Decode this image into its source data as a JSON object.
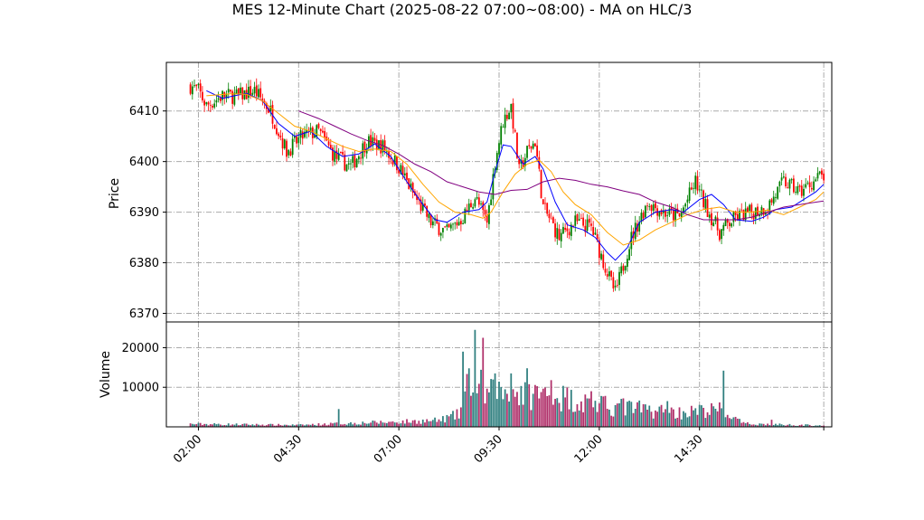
{
  "chart_data": {
    "type": "candlestick",
    "title": "MES 12-Minute Chart (2025-08-22 07:00~08:00) - MA on HLC/3",
    "price_panel": {
      "ylabel": "Price",
      "ylim": [
        6368.3,
        6419.6
      ],
      "yticks": [
        6370,
        6380,
        6390,
        6400,
        6410
      ],
      "close_path": [
        [
          "01:48",
          6415
        ],
        [
          "02:00",
          6414
        ],
        [
          "02:12",
          6411
        ],
        [
          "02:36",
          6413
        ],
        [
          "03:00",
          6413
        ],
        [
          "03:24",
          6414
        ],
        [
          "03:48",
          6410
        ],
        [
          "04:12",
          6402
        ],
        [
          "04:36",
          6405
        ],
        [
          "05:00",
          6406
        ],
        [
          "05:24",
          6401
        ],
        [
          "05:48",
          6399
        ],
        [
          "06:12",
          6404
        ],
        [
          "06:36",
          6403
        ],
        [
          "07:00",
          6399
        ],
        [
          "07:24",
          6393
        ],
        [
          "07:48",
          6388
        ],
        [
          "08:12",
          6386
        ],
        [
          "08:36",
          6389
        ],
        [
          "08:54",
          6393
        ],
        [
          "09:12",
          6388
        ],
        [
          "09:24",
          6400
        ],
        [
          "09:36",
          6408
        ],
        [
          "09:48",
          6411
        ],
        [
          "10:00",
          6398
        ],
        [
          "10:12",
          6402
        ],
        [
          "10:24",
          6404
        ],
        [
          "10:36",
          6391
        ],
        [
          "11:00",
          6385
        ],
        [
          "11:24",
          6388
        ],
        [
          "11:48",
          6387
        ],
        [
          "12:12",
          6378
        ],
        [
          "12:24",
          6374
        ],
        [
          "12:48",
          6385
        ],
        [
          "13:12",
          6392
        ],
        [
          "13:36",
          6390
        ],
        [
          "14:00",
          6389
        ],
        [
          "14:24",
          6396
        ],
        [
          "14:36",
          6392
        ],
        [
          "15:00",
          6386
        ],
        [
          "15:24",
          6389
        ],
        [
          "15:48",
          6390
        ],
        [
          "16:12",
          6391
        ],
        [
          "16:36",
          6396
        ],
        [
          "17:00",
          6394
        ],
        [
          "17:30",
          6397
        ]
      ],
      "ma_series": [
        {
          "color": "#0000ff",
          "values": [
            [
              "02:12",
              6414
            ],
            [
              "02:36",
              6412.5
            ],
            [
              "03:12",
              6413.5
            ],
            [
              "03:36",
              6412
            ],
            [
              "04:00",
              6407.5
            ],
            [
              "04:24",
              6405
            ],
            [
              "04:48",
              6406
            ],
            [
              "05:12",
              6403
            ],
            [
              "05:36",
              6401
            ],
            [
              "06:00",
              6401.5
            ],
            [
              "06:24",
              6403.5
            ],
            [
              "06:48",
              6401
            ],
            [
              "07:12",
              6396
            ],
            [
              "07:36",
              6391.5
            ],
            [
              "07:54",
              6388.5
            ],
            [
              "08:12",
              6388
            ],
            [
              "08:36",
              6390
            ],
            [
              "09:00",
              6390.5
            ],
            [
              "09:12",
              6392
            ],
            [
              "09:24",
              6398
            ],
            [
              "09:36",
              6403.3
            ],
            [
              "09:48",
              6403
            ],
            [
              "10:06",
              6399.5
            ],
            [
              "10:24",
              6401
            ],
            [
              "10:36",
              6398.5
            ],
            [
              "10:54",
              6392
            ],
            [
              "11:12",
              6387.5
            ],
            [
              "11:36",
              6386.5
            ],
            [
              "11:54",
              6385
            ],
            [
              "12:12",
              6382
            ],
            [
              "12:24",
              6380.5
            ],
            [
              "12:42",
              6383
            ],
            [
              "13:00",
              6388
            ],
            [
              "13:24",
              6390
            ],
            [
              "13:48",
              6390.5
            ],
            [
              "14:06",
              6390
            ],
            [
              "14:30",
              6392.5
            ],
            [
              "14:48",
              6393.5
            ],
            [
              "15:06",
              6391.5
            ],
            [
              "15:24",
              6388.5
            ],
            [
              "15:48",
              6388.2
            ],
            [
              "16:06",
              6389
            ],
            [
              "16:24",
              6390.5
            ],
            [
              "16:48",
              6391
            ],
            [
              "17:06",
              6392.5
            ],
            [
              "17:24",
              6394
            ],
            [
              "17:36",
              6395.5
            ]
          ]
        },
        {
          "color": "#ffa500",
          "values": [
            [
              "02:12",
              6413
            ],
            [
              "02:48",
              6413.4
            ],
            [
              "03:12",
              6413.3
            ],
            [
              "03:36",
              6412
            ],
            [
              "04:00",
              6409.5
            ],
            [
              "04:24",
              6407
            ],
            [
              "04:48",
              6406
            ],
            [
              "05:12",
              6404.5
            ],
            [
              "05:36",
              6403
            ],
            [
              "06:00",
              6402
            ],
            [
              "06:24",
              6402.5
            ],
            [
              "06:48",
              6402
            ],
            [
              "07:12",
              6399.5
            ],
            [
              "07:36",
              6395.5
            ],
            [
              "08:00",
              6392
            ],
            [
              "08:24",
              6390
            ],
            [
              "08:48",
              6389.5
            ],
            [
              "09:06",
              6388.8
            ],
            [
              "09:18",
              6390
            ],
            [
              "09:36",
              6394
            ],
            [
              "09:54",
              6397.5
            ],
            [
              "10:12",
              6399.5
            ],
            [
              "10:30",
              6400.3
            ],
            [
              "10:48",
              6398
            ],
            [
              "11:06",
              6394
            ],
            [
              "11:24",
              6391.5
            ],
            [
              "11:48",
              6389.5
            ],
            [
              "12:12",
              6386
            ],
            [
              "12:36",
              6383.5
            ],
            [
              "13:00",
              6384.5
            ],
            [
              "13:24",
              6386.5
            ],
            [
              "13:48",
              6388
            ],
            [
              "14:12",
              6389.5
            ],
            [
              "14:36",
              6390.5
            ],
            [
              "15:00",
              6391
            ],
            [
              "15:24",
              6390
            ],
            [
              "15:48",
              6390
            ],
            [
              "16:12",
              6390.4
            ],
            [
              "16:36",
              6389.5
            ],
            [
              "17:00",
              6391
            ],
            [
              "17:24",
              6392.5
            ],
            [
              "17:36",
              6394
            ]
          ]
        },
        {
          "color": "#800080",
          "values": [
            [
              "04:30",
              6410
            ],
            [
              "05:00",
              6408.5
            ],
            [
              "05:24",
              6407
            ],
            [
              "05:48",
              6405.5
            ],
            [
              "06:12",
              6404.2
            ],
            [
              "06:36",
              6403.2
            ],
            [
              "07:00",
              6401.5
            ],
            [
              "07:24",
              6399.5
            ],
            [
              "07:48",
              6398
            ],
            [
              "08:12",
              6396
            ],
            [
              "08:36",
              6395
            ],
            [
              "09:00",
              6394
            ],
            [
              "09:24",
              6393.5
            ],
            [
              "09:48",
              6394.3
            ],
            [
              "10:12",
              6394.5
            ],
            [
              "10:36",
              6396
            ],
            [
              "11:00",
              6396.7
            ],
            [
              "11:24",
              6396.3
            ],
            [
              "11:48",
              6395.5
            ],
            [
              "12:12",
              6395
            ],
            [
              "12:36",
              6394.2
            ],
            [
              "13:00",
              6393.5
            ],
            [
              "13:24",
              6392
            ],
            [
              "13:48",
              6391
            ],
            [
              "14:12",
              6389.5
            ],
            [
              "14:36",
              6388.5
            ],
            [
              "15:00",
              6388.5
            ],
            [
              "15:24",
              6388.5
            ],
            [
              "15:48",
              6389
            ],
            [
              "16:12",
              6390
            ],
            [
              "16:36",
              6391
            ],
            [
              "17:00",
              6391.5
            ],
            [
              "17:36",
              6392.2
            ]
          ]
        }
      ]
    },
    "volume_panel": {
      "ylabel": "Volume",
      "ylim": [
        0,
        26500
      ],
      "yticks": [
        10000,
        20000
      ],
      "ytick_labels": [
        "10000",
        "20000"
      ],
      "profile": [
        [
          "01:48",
          800
        ],
        [
          "04:30",
          500
        ],
        [
          "05:30",
          900
        ],
        [
          "06:00",
          1100
        ],
        [
          "07:00",
          1400
        ],
        [
          "08:00",
          1800
        ],
        [
          "08:30",
          3500
        ],
        [
          "08:48",
          14000
        ],
        [
          "09:12",
          9000
        ],
        [
          "09:36",
          10000
        ],
        [
          "10:12",
          9500
        ],
        [
          "11:00",
          8500
        ],
        [
          "12:00",
          6000
        ],
        [
          "13:00",
          5000
        ],
        [
          "14:00",
          4000
        ],
        [
          "15:00",
          4800
        ],
        [
          "15:36",
          900
        ],
        [
          "16:36",
          600
        ],
        [
          "17:36",
          400
        ]
      ],
      "highlights": [
        [
          "05:30",
          4500
        ],
        [
          "08:36",
          19000
        ],
        [
          "08:54",
          24500
        ],
        [
          "09:06",
          22500
        ],
        [
          "09:24",
          13500
        ],
        [
          "09:48",
          13500
        ],
        [
          "10:12",
          14800
        ],
        [
          "10:48",
          11800
        ],
        [
          "11:48",
          9000
        ],
        [
          "12:36",
          7200
        ],
        [
          "13:42",
          6500
        ],
        [
          "15:06",
          14200
        ],
        [
          "16:18",
          1800
        ]
      ]
    },
    "x_axis": {
      "tick_times": [
        "02:00",
        "04:30",
        "07:00",
        "09:30",
        "12:00",
        "14:30"
      ],
      "tick_labels": [
        "02:00",
        "04:30",
        "07:00",
        "09:30",
        "12:00",
        "14:30"
      ],
      "range": [
        "01:12",
        "17:48"
      ],
      "last_tick": "17:36"
    },
    "grid": true,
    "up_color": "#008000",
    "down_color": "#ff0000"
  }
}
